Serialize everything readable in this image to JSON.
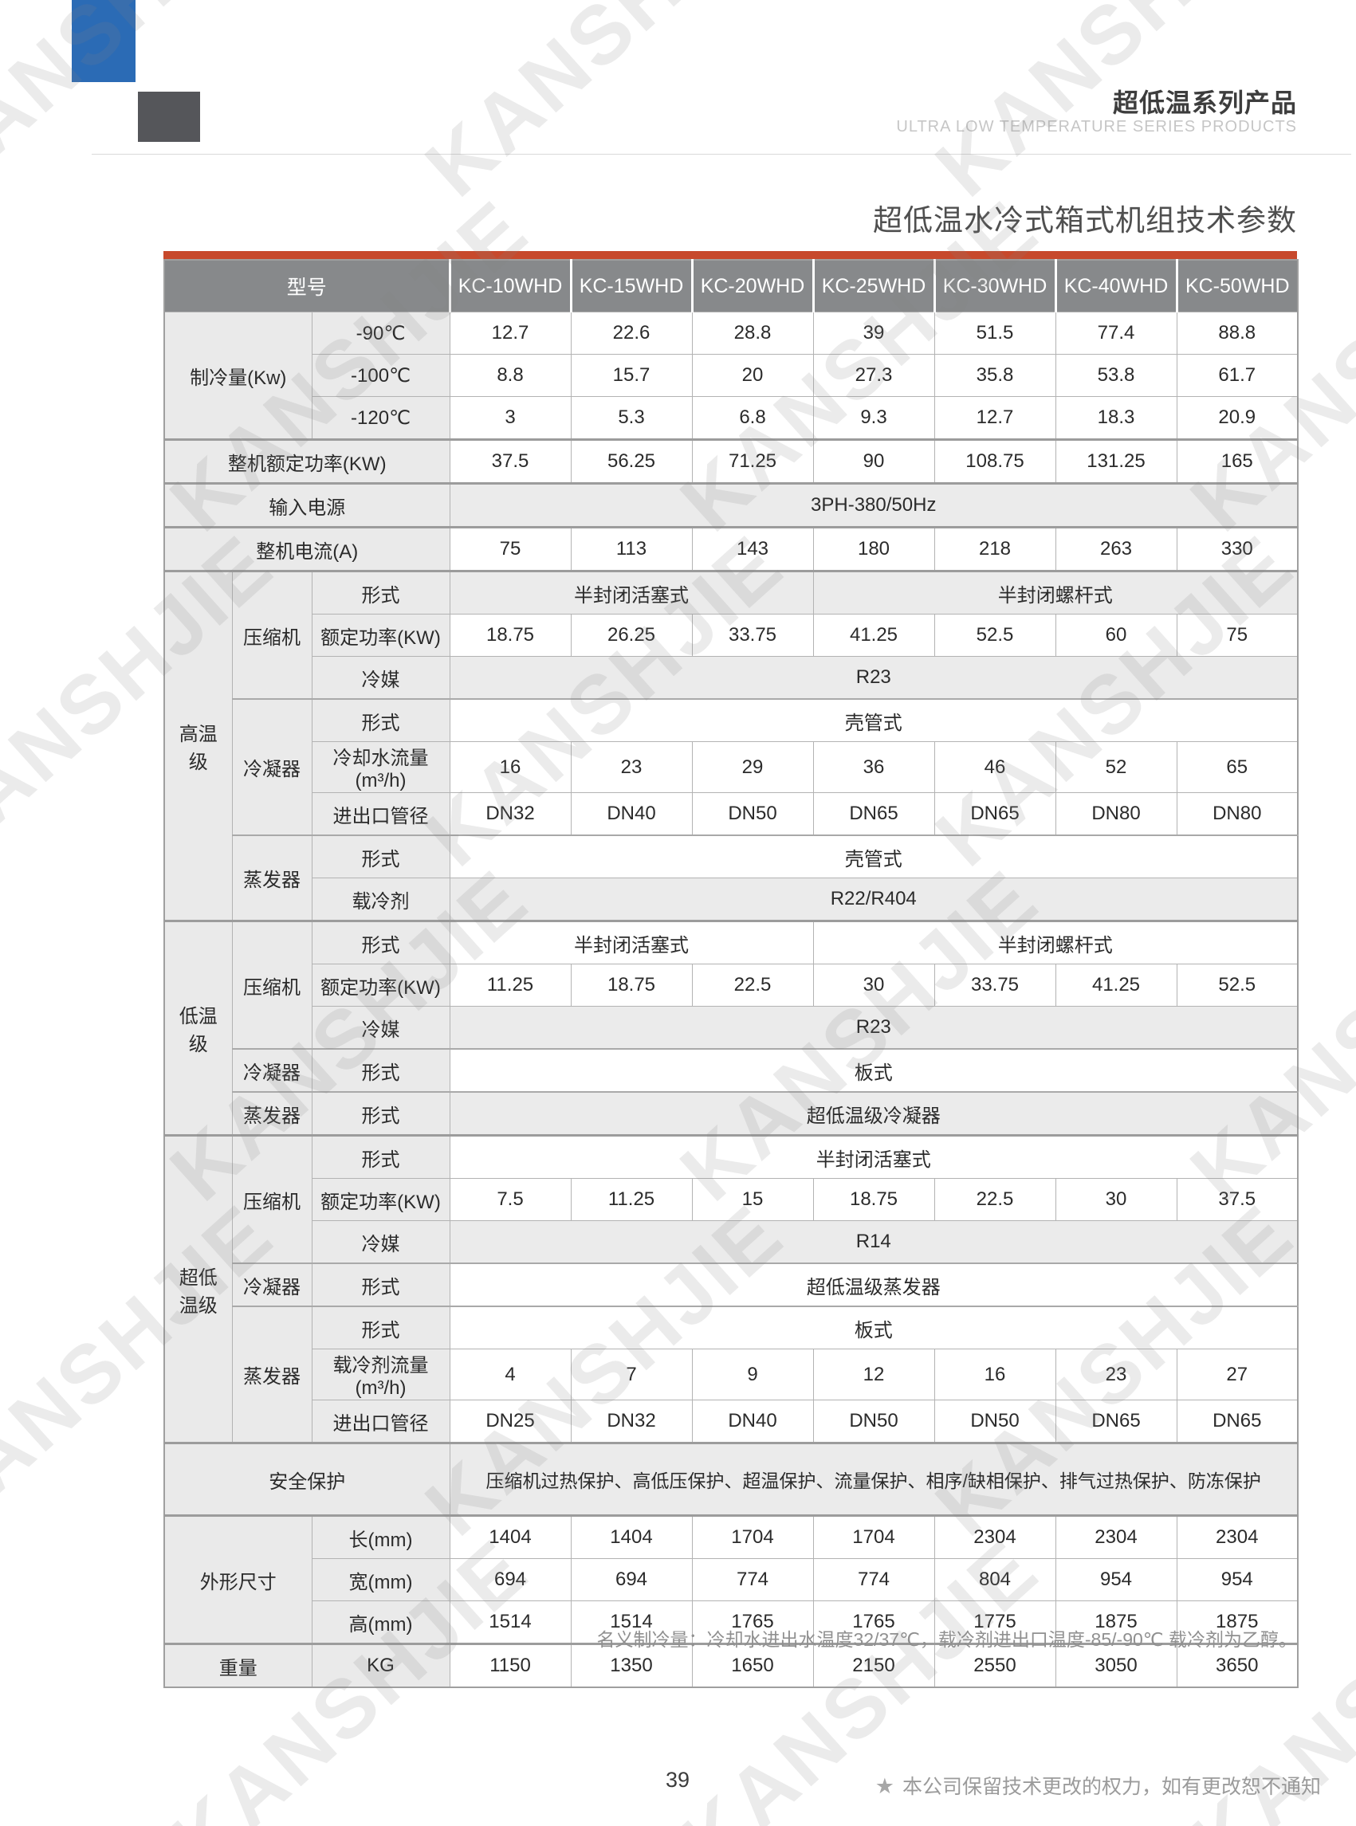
{
  "colors": {
    "logo_blue": "#2b6bb5",
    "logo_dark": "#55565a",
    "accent_red": "#c7492c",
    "header_gray": "#87898b"
  },
  "header": {
    "title_cn": "超低温系列产品",
    "title_en": "ULTRA LOW TEMPERATURE SERIES PRODUCTS"
  },
  "page_title": "超低温水冷式箱式机组技术参数",
  "watermark": {
    "text": "KANSHJIE"
  },
  "table": {
    "model_header": "型号",
    "models": [
      "KC-10WHD",
      "KC-15WHD",
      "KC-20WHD",
      "KC-25WHD",
      "KC-30WHD",
      "KC-40WHD",
      "KC-50WHD"
    ],
    "rows": [
      {
        "cells": [
          {
            "t": "制冷量(Kw)",
            "k": "l",
            "cs": 2,
            "rs": 3
          },
          {
            "t": "-90℃",
            "k": "l"
          },
          {
            "t": "12.7"
          },
          {
            "t": "22.6"
          },
          {
            "t": "28.8"
          },
          {
            "t": "39"
          },
          {
            "t": "51.5"
          },
          {
            "t": "77.4"
          },
          {
            "t": "88.8"
          }
        ]
      },
      {
        "cells": [
          {
            "t": "-100℃",
            "k": "l"
          },
          {
            "t": "8.8"
          },
          {
            "t": "15.7"
          },
          {
            "t": "20"
          },
          {
            "t": "27.3"
          },
          {
            "t": "35.8"
          },
          {
            "t": "53.8"
          },
          {
            "t": "61.7"
          }
        ]
      },
      {
        "cells": [
          {
            "t": "-120℃",
            "k": "l"
          },
          {
            "t": "3"
          },
          {
            "t": "5.3"
          },
          {
            "t": "6.8"
          },
          {
            "t": "9.3"
          },
          {
            "t": "12.7"
          },
          {
            "t": "18.3"
          },
          {
            "t": "20.9"
          }
        ]
      },
      {
        "sec": 1,
        "cells": [
          {
            "t": "整机额定功率(KW)",
            "k": "l",
            "cs": 3
          },
          {
            "t": "37.5"
          },
          {
            "t": "56.25"
          },
          {
            "t": "71.25"
          },
          {
            "t": "90"
          },
          {
            "t": "108.75"
          },
          {
            "t": "131.25"
          },
          {
            "t": "165"
          }
        ]
      },
      {
        "sec": 1,
        "cells": [
          {
            "t": "输入电源",
            "k": "l",
            "cs": 3
          },
          {
            "t": "3PH-380/50Hz",
            "k": "g",
            "cs": 7
          }
        ]
      },
      {
        "sec": 1,
        "cells": [
          {
            "t": "整机电流(A)",
            "k": "l",
            "cs": 3
          },
          {
            "t": "75"
          },
          {
            "t": "113"
          },
          {
            "t": "143"
          },
          {
            "t": "180"
          },
          {
            "t": "218"
          },
          {
            "t": "263"
          },
          {
            "t": "330"
          }
        ]
      },
      {
        "sec": 1,
        "cells": [
          {
            "t": "高温级",
            "k": "l",
            "rs": 8
          },
          {
            "t": "压缩机",
            "k": "l",
            "rs": 3
          },
          {
            "t": "形式",
            "k": "l"
          },
          {
            "t": "半封闭活塞式",
            "k": "g",
            "cs": 3
          },
          {
            "t": "半封闭螺杆式",
            "k": "g",
            "cs": 4
          }
        ]
      },
      {
        "cells": [
          {
            "t": "额定功率(KW)",
            "k": "l"
          },
          {
            "t": "18.75"
          },
          {
            "t": "26.25"
          },
          {
            "t": "33.75"
          },
          {
            "t": "41.25"
          },
          {
            "t": "52.5"
          },
          {
            "t": "60"
          },
          {
            "t": "75"
          }
        ]
      },
      {
        "cells": [
          {
            "t": "冷媒",
            "k": "l"
          },
          {
            "t": "R23",
            "k": "g",
            "cs": 7
          }
        ]
      },
      {
        "sub": 1,
        "cells": [
          {
            "t": "冷凝器",
            "k": "l",
            "rs": 3
          },
          {
            "t": "形式",
            "k": "l"
          },
          {
            "t": "壳管式",
            "k": "v",
            "cs": 7
          }
        ]
      },
      {
        "cells": [
          {
            "t": "冷却水流量(m³/h)",
            "k": "l"
          },
          {
            "t": "16"
          },
          {
            "t": "23"
          },
          {
            "t": "29"
          },
          {
            "t": "36"
          },
          {
            "t": "46"
          },
          {
            "t": "52"
          },
          {
            "t": "65"
          }
        ]
      },
      {
        "cells": [
          {
            "t": "进出口管径",
            "k": "l"
          },
          {
            "t": "DN32"
          },
          {
            "t": "DN40"
          },
          {
            "t": "DN50"
          },
          {
            "t": "DN65"
          },
          {
            "t": "DN65"
          },
          {
            "t": "DN80"
          },
          {
            "t": "DN80"
          }
        ]
      },
      {
        "sub": 1,
        "cells": [
          {
            "t": "蒸发器",
            "k": "l",
            "rs": 2
          },
          {
            "t": "形式",
            "k": "l"
          },
          {
            "t": "壳管式",
            "k": "v",
            "cs": 7
          }
        ]
      },
      {
        "cells": [
          {
            "t": "载冷剂",
            "k": "l"
          },
          {
            "t": "R22/R404",
            "k": "g",
            "cs": 7
          }
        ]
      },
      {
        "sec": 1,
        "cells": [
          {
            "t": "低温级",
            "k": "l",
            "rs": 5
          },
          {
            "t": "压缩机",
            "k": "l",
            "rs": 3
          },
          {
            "t": "形式",
            "k": "l"
          },
          {
            "t": "半封闭活塞式",
            "k": "v",
            "cs": 3
          },
          {
            "t": "半封闭螺杆式",
            "k": "v",
            "cs": 4
          }
        ]
      },
      {
        "cells": [
          {
            "t": "额定功率(KW)",
            "k": "l"
          },
          {
            "t": "11.25"
          },
          {
            "t": "18.75"
          },
          {
            "t": "22.5"
          },
          {
            "t": "30"
          },
          {
            "t": "33.75"
          },
          {
            "t": "41.25"
          },
          {
            "t": "52.5"
          }
        ]
      },
      {
        "cells": [
          {
            "t": "冷媒",
            "k": "l"
          },
          {
            "t": "R23",
            "k": "g",
            "cs": 7
          }
        ]
      },
      {
        "sub": 1,
        "cells": [
          {
            "t": "冷凝器",
            "k": "l"
          },
          {
            "t": "形式",
            "k": "l"
          },
          {
            "t": "板式",
            "k": "v",
            "cs": 7
          }
        ]
      },
      {
        "sub": 1,
        "cells": [
          {
            "t": "蒸发器",
            "k": "l"
          },
          {
            "t": "形式",
            "k": "l"
          },
          {
            "t": "超低温级冷凝器",
            "k": "g",
            "cs": 7
          }
        ]
      },
      {
        "sec": 1,
        "cells": [
          {
            "t": "超低温级",
            "k": "l",
            "rs": 7
          },
          {
            "t": "压缩机",
            "k": "l",
            "rs": 3
          },
          {
            "t": "形式",
            "k": "l"
          },
          {
            "t": "半封闭活塞式",
            "k": "v",
            "cs": 7
          }
        ]
      },
      {
        "cells": [
          {
            "t": "额定功率(KW)",
            "k": "l"
          },
          {
            "t": "7.5"
          },
          {
            "t": "11.25"
          },
          {
            "t": "15"
          },
          {
            "t": "18.75"
          },
          {
            "t": "22.5"
          },
          {
            "t": "30"
          },
          {
            "t": "37.5"
          }
        ]
      },
      {
        "cells": [
          {
            "t": "冷媒",
            "k": "l"
          },
          {
            "t": "R14",
            "k": "g",
            "cs": 7
          }
        ]
      },
      {
        "sub": 1,
        "cells": [
          {
            "t": "冷凝器",
            "k": "l"
          },
          {
            "t": "形式",
            "k": "l"
          },
          {
            "t": "超低温级蒸发器",
            "k": "v",
            "cs": 7
          }
        ]
      },
      {
        "sub": 1,
        "cells": [
          {
            "t": "蒸发器",
            "k": "l",
            "rs": 3
          },
          {
            "t": "形式",
            "k": "l"
          },
          {
            "t": "板式",
            "k": "v",
            "cs": 7
          }
        ]
      },
      {
        "cells": [
          {
            "t": "载冷剂流量(m³/h)",
            "k": "l"
          },
          {
            "t": "4"
          },
          {
            "t": "7"
          },
          {
            "t": "9"
          },
          {
            "t": "12"
          },
          {
            "t": "16"
          },
          {
            "t": "23"
          },
          {
            "t": "27"
          }
        ]
      },
      {
        "cells": [
          {
            "t": "进出口管径",
            "k": "l"
          },
          {
            "t": "DN25"
          },
          {
            "t": "DN32"
          },
          {
            "t": "DN40"
          },
          {
            "t": "DN50"
          },
          {
            "t": "DN50"
          },
          {
            "t": "DN65"
          },
          {
            "t": "DN65"
          }
        ]
      },
      {
        "sec": 1,
        "tall": 1,
        "cells": [
          {
            "t": "安全保护",
            "k": "l",
            "cs": 3
          },
          {
            "t": "压缩机过热保护、高低压保护、超温保护、流量保护、相序/缺相保护、排气过热保护、防冻保护",
            "k": "g",
            "cs": 7
          }
        ]
      },
      {
        "sec": 1,
        "cells": [
          {
            "t": "外形尺寸",
            "k": "l",
            "cs": 2,
            "rs": 3
          },
          {
            "t": "长(mm)",
            "k": "l"
          },
          {
            "t": "1404"
          },
          {
            "t": "1404"
          },
          {
            "t": "1704"
          },
          {
            "t": "1704"
          },
          {
            "t": "2304"
          },
          {
            "t": "2304"
          },
          {
            "t": "2304"
          }
        ]
      },
      {
        "cells": [
          {
            "t": "宽(mm)",
            "k": "l"
          },
          {
            "t": "694"
          },
          {
            "t": "694"
          },
          {
            "t": "774"
          },
          {
            "t": "774"
          },
          {
            "t": "804"
          },
          {
            "t": "954"
          },
          {
            "t": "954"
          }
        ]
      },
      {
        "cells": [
          {
            "t": "高(mm)",
            "k": "l"
          },
          {
            "t": "1514"
          },
          {
            "t": "1514"
          },
          {
            "t": "1765"
          },
          {
            "t": "1765"
          },
          {
            "t": "1775"
          },
          {
            "t": "1875"
          },
          {
            "t": "1875"
          }
        ]
      },
      {
        "sec": 1,
        "cells": [
          {
            "t": "重量",
            "k": "l",
            "cs": 2
          },
          {
            "t": "KG",
            "k": "l"
          },
          {
            "t": "1150"
          },
          {
            "t": "1350"
          },
          {
            "t": "1650"
          },
          {
            "t": "2150"
          },
          {
            "t": "2550"
          },
          {
            "t": "3050"
          },
          {
            "t": "3650"
          }
        ]
      }
    ]
  },
  "note": "名义制冷量：冷却水进出水温度32/37℃，载冷剂进出口温度-85/-90℃  载冷剂为乙醇。",
  "footer": {
    "page_number": "39",
    "star": "★",
    "disclaimer": "本公司保留技术更改的权力，如有更改恕不通知"
  }
}
